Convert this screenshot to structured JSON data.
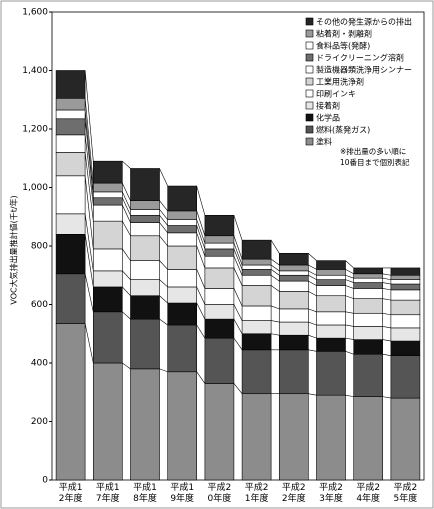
{
  "chart_data": {
    "type": "stacked-bar",
    "ylabel": "VOC大気排出量推計値(千t/年)",
    "annotation": [
      "※排出量の多い順に",
      "10番目まで個別表記"
    ],
    "categories": [
      "平成12年度",
      "平成17年度",
      "平成18年度",
      "平成19年度",
      "平成20年度",
      "平成21年度",
      "平成22年度",
      "平成23年度",
      "平成24年度",
      "平成25年度"
    ],
    "ylim": [
      0,
      1600
    ],
    "yticks": [
      0,
      200,
      400,
      600,
      800,
      {
        "value": 1000,
        "label": "1,000"
      },
      {
        "value": 1200,
        "label": "1,200"
      },
      {
        "value": 1400,
        "label": "1,400"
      },
      {
        "value": 1600,
        "label": "1,600"
      }
    ],
    "grid": false,
    "series": [
      {
        "name": "塗料",
        "color": "#8c8c8c",
        "values": [
          535,
          400,
          380,
          370,
          330,
          295,
          295,
          290,
          285,
          280
        ]
      },
      {
        "name": "燃料(蒸発ガス)",
        "color": "#555555",
        "values": [
          170,
          175,
          170,
          160,
          155,
          150,
          150,
          150,
          145,
          145
        ]
      },
      {
        "name": "化学品",
        "color": "#111111",
        "values": [
          135,
          85,
          80,
          75,
          65,
          55,
          50,
          45,
          50,
          50
        ]
      },
      {
        "name": "接着剤",
        "color": "#e6e6e6",
        "values": [
          70,
          55,
          55,
          55,
          50,
          45,
          45,
          45,
          45,
          45
        ]
      },
      {
        "name": "印刷インキ",
        "color": "#ffffff",
        "values": [
          130,
          75,
          65,
          60,
          55,
          50,
          45,
          45,
          45,
          45
        ]
      },
      {
        "name": "工業用洗浄剤",
        "color": "#d4d4d4",
        "values": [
          80,
          95,
          85,
          80,
          70,
          70,
          60,
          55,
          50,
          50
        ]
      },
      {
        "name": "製造機器類洗浄用シンナー",
        "color": "#ffffff",
        "values": [
          60,
          55,
          45,
          45,
          40,
          35,
          35,
          35,
          35,
          35
        ]
      },
      {
        "name": "ドライクリーニング溶剤",
        "color": "#6e6e6e",
        "values": [
          55,
          25,
          25,
          25,
          25,
          20,
          20,
          20,
          20,
          20
        ]
      },
      {
        "name": "食料品等(発酵)",
        "color": "#ffffff",
        "values": [
          30,
          20,
          20,
          20,
          20,
          15,
          15,
          15,
          15,
          15
        ]
      },
      {
        "name": "粘着剤・剥離剤",
        "color": "#9a9a9a",
        "values": [
          40,
          30,
          30,
          30,
          25,
          20,
          20,
          20,
          15,
          15
        ]
      },
      {
        "name": "その他の発生源からの排出",
        "color": "#262626",
        "values": [
          95,
          75,
          110,
          85,
          70,
          65,
          40,
          30,
          20,
          25
        ]
      }
    ]
  }
}
